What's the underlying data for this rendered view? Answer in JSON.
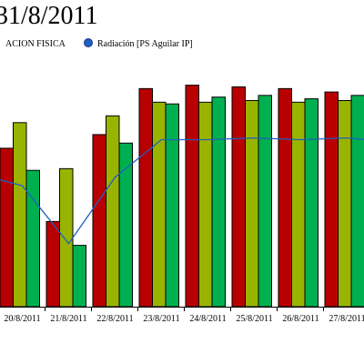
{
  "chart_data": {
    "type": "bar",
    "title": "31/8/2011",
    "categories": [
      "20/8/2011",
      "21/8/2011",
      "22/8/2011",
      "23/8/2011",
      "24/8/2011",
      "25/8/2011",
      "26/8/2011",
      "27/8/2011"
    ],
    "series": [
      {
        "kind": "bar",
        "color": "#b80000",
        "values": [
          93,
          50,
          101,
          128,
          130,
          129,
          128,
          126
        ]
      },
      {
        "kind": "bar",
        "color": "#99b400",
        "values": [
          108,
          81,
          112,
          120,
          120,
          121,
          120,
          121
        ]
      },
      {
        "kind": "bar",
        "color": "#00b050",
        "values": [
          80,
          36,
          96,
          119,
          123,
          124,
          122,
          124
        ]
      },
      {
        "name": "Radiación [PS Aguilar IP]",
        "kind": "line",
        "color": "#1f5fbf",
        "values": [
          71,
          37,
          76,
          98,
          98,
          99,
          98,
          99
        ]
      }
    ],
    "legend": {
      "placement": "top-left",
      "entries": [
        {
          "label": "ACION FISICA",
          "marker": "none"
        },
        {
          "label": "Radiación [PS Aguilar IP]",
          "marker": "circle",
          "color": "#1f5fbf"
        }
      ]
    },
    "ylim": [
      0,
      180
    ],
    "grid": false,
    "xlabel": "",
    "ylabel": ""
  }
}
